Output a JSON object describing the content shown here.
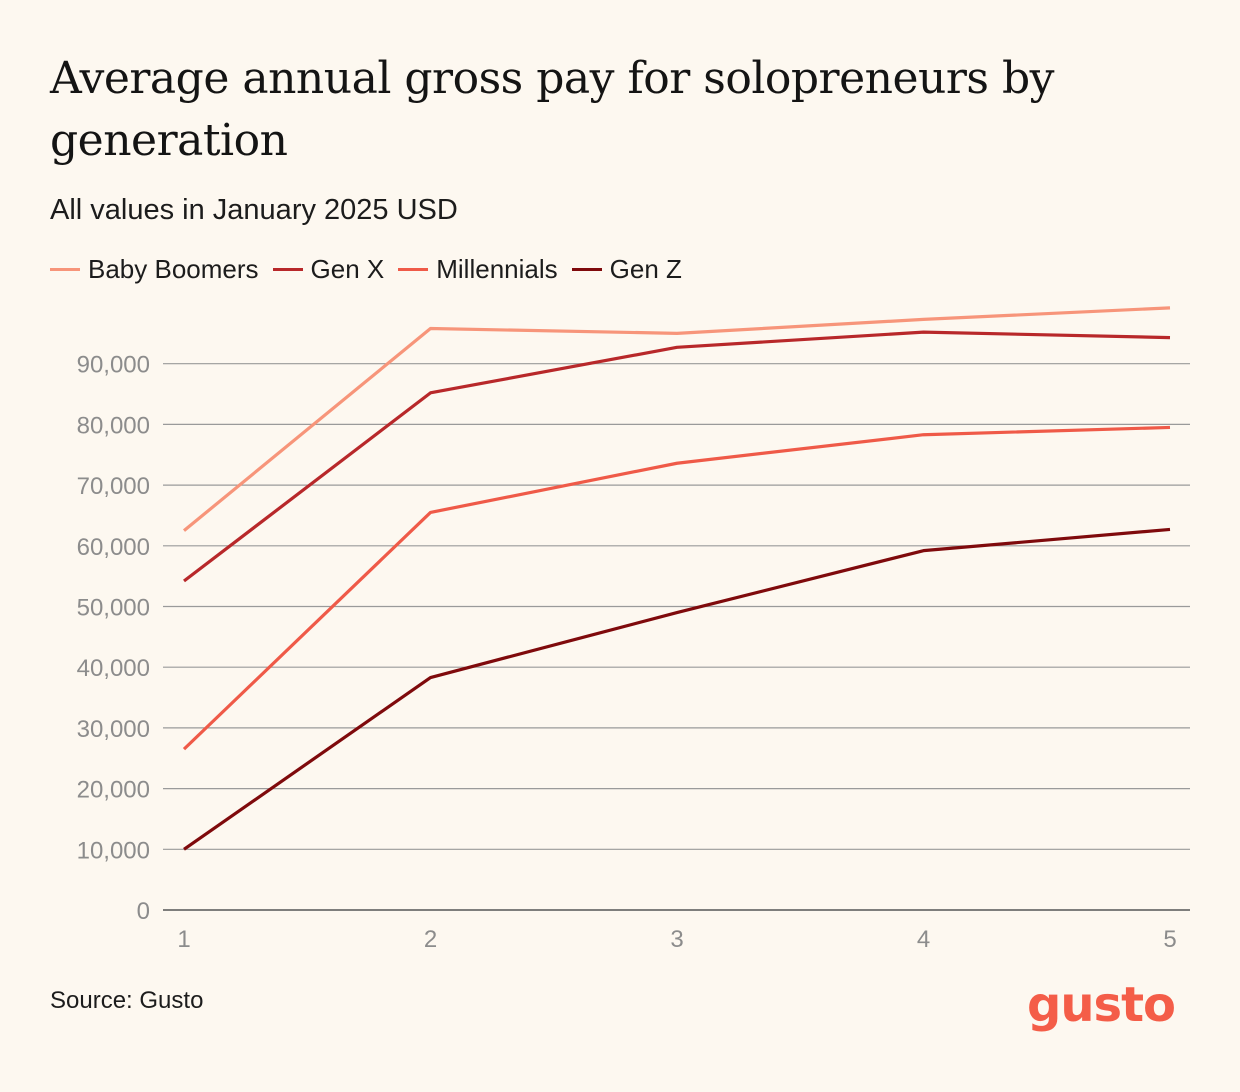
{
  "title": "Average annual gross pay for solopreneurs by generation",
  "subtitle": "All values in January 2025 USD",
  "source": "Source: Gusto",
  "logo_text": "gusto",
  "colors": {
    "background": "#fdf8f0",
    "gridline": "#9a9a9a",
    "tick_text": "#8c8c8c",
    "logo": "#f45d48"
  },
  "chart_data": {
    "type": "line",
    "title": "Average annual gross pay for solopreneurs by generation",
    "subtitle": "All values in January 2025 USD",
    "xlabel": "",
    "ylabel": "",
    "x": [
      1,
      2,
      3,
      4,
      5
    ],
    "x_tick_labels": [
      "1",
      "2",
      "3",
      "4",
      "5"
    ],
    "y_tick_labels": [
      "0",
      "10,000",
      "20,000",
      "30,000",
      "40,000",
      "50,000",
      "60,000",
      "70,000",
      "80,000",
      "90,000"
    ],
    "y_ticks": [
      0,
      10000,
      20000,
      30000,
      40000,
      50000,
      60000,
      70000,
      80000,
      90000
    ],
    "ylim": [
      0,
      100000
    ],
    "grid": true,
    "legend_position": "top-left",
    "series": [
      {
        "name": "Baby Boomers",
        "color": "#f7957a",
        "values": [
          62500,
          95800,
          95000,
          97300,
          99200
        ]
      },
      {
        "name": "Gen X",
        "color": "#b8282a",
        "values": [
          54200,
          85200,
          92700,
          95200,
          94300
        ]
      },
      {
        "name": "Millennials",
        "color": "#ef5a48",
        "values": [
          26500,
          65500,
          73600,
          78300,
          79500
        ]
      },
      {
        "name": "Gen Z",
        "color": "#7f0a0c",
        "values": [
          10000,
          38300,
          49000,
          59200,
          62700
        ]
      }
    ]
  }
}
